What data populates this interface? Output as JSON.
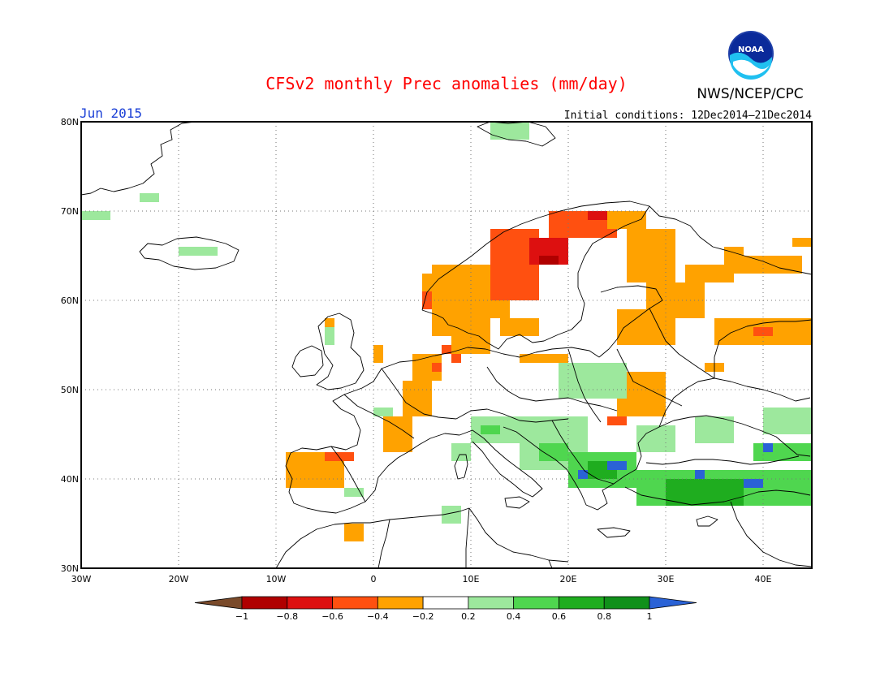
{
  "title": "CFSv2 monthly Prec anomalies (mm/day)",
  "month_label": "Jun 2015",
  "initial_conditions": "Initial conditions: 12Dec2014–21Dec2014",
  "organization": "NWS/NCEP/CPC",
  "logo_text": "NOAA",
  "map": {
    "lon_range": [
      -30,
      45
    ],
    "lat_range": [
      30,
      80
    ],
    "lon_ticks": [
      {
        "lon": -30,
        "label": "30W"
      },
      {
        "lon": -20,
        "label": "20W"
      },
      {
        "lon": -10,
        "label": "10W"
      },
      {
        "lon": 0,
        "label": "0"
      },
      {
        "lon": 10,
        "label": "10E"
      },
      {
        "lon": 20,
        "label": "20E"
      },
      {
        "lon": 30,
        "label": "30E"
      },
      {
        "lon": 40,
        "label": "40E"
      }
    ],
    "lat_ticks": [
      {
        "lat": 80,
        "label": "80N"
      },
      {
        "lat": 70,
        "label": "70N"
      },
      {
        "lat": 60,
        "label": "60N"
      },
      {
        "lat": 50,
        "label": "50N"
      },
      {
        "lat": 40,
        "label": "40N"
      },
      {
        "lat": 30,
        "label": "30N"
      }
    ],
    "grid": "dotted",
    "cell_deg": 1
  },
  "colorbar": {
    "ticks": [
      "−1",
      "−0.8",
      "−0.6",
      "−0.4",
      "−0.2",
      "0.2",
      "0.4",
      "0.6",
      "0.8",
      "1"
    ],
    "under_color": "#7a4a2a",
    "over_color": "#2a62d6",
    "colors": [
      "#b00000",
      "#dd1010",
      "#ff5010",
      "#ffa200",
      "#ffffff",
      "#9de89d",
      "#4fd64f",
      "#1fad1f",
      "#10901a"
    ]
  },
  "anomaly_regions": [
    {
      "lon": [
        -30,
        -27
      ],
      "lat": [
        69,
        70
      ],
      "value": 0.3
    },
    {
      "lon": [
        -24,
        -22
      ],
      "lat": [
        71,
        72
      ],
      "value": 0.3
    },
    {
      "lon": [
        -20,
        -16
      ],
      "lat": [
        65,
        66
      ],
      "value": 0.3
    },
    {
      "lon": [
        12,
        16
      ],
      "lat": [
        78,
        80
      ],
      "value": 0.3
    },
    {
      "lon": [
        -5,
        -4
      ],
      "lat": [
        57,
        58
      ],
      "value": -0.3
    },
    {
      "lon": [
        -5,
        -4
      ],
      "lat": [
        55,
        57
      ],
      "value": 0.3
    },
    {
      "lon": [
        0,
        1
      ],
      "lat": [
        53,
        55
      ],
      "value": -0.3
    },
    {
      "lon": [
        5,
        8
      ],
      "lat": [
        61,
        63
      ],
      "value": -0.3
    },
    {
      "lon": [
        5,
        6
      ],
      "lat": [
        59,
        61
      ],
      "value": -0.5
    },
    {
      "lon": [
        6,
        12
      ],
      "lat": [
        56,
        64
      ],
      "value": -0.3
    },
    {
      "lon": [
        10,
        14
      ],
      "lat": [
        58,
        60
      ],
      "value": -0.3
    },
    {
      "lon": [
        12,
        17
      ],
      "lat": [
        60,
        68
      ],
      "value": -0.5
    },
    {
      "lon": [
        16,
        20
      ],
      "lat": [
        64,
        67
      ],
      "value": -0.7
    },
    {
      "lon": [
        17,
        19
      ],
      "lat": [
        64,
        65
      ],
      "value": -0.9
    },
    {
      "lon": [
        18,
        25
      ],
      "lat": [
        67,
        70
      ],
      "value": -0.5
    },
    {
      "lon": [
        22,
        25
      ],
      "lat": [
        69,
        70
      ],
      "value": -0.7
    },
    {
      "lon": [
        24,
        28
      ],
      "lat": [
        68,
        70
      ],
      "value": -0.3
    },
    {
      "lon": [
        26,
        31
      ],
      "lat": [
        62,
        68
      ],
      "value": -0.3
    },
    {
      "lon": [
        28,
        34
      ],
      "lat": [
        58,
        62
      ],
      "value": -0.3
    },
    {
      "lon": [
        32,
        37
      ],
      "lat": [
        62,
        64
      ],
      "value": -0.3
    },
    {
      "lon": [
        36,
        38
      ],
      "lat": [
        64,
        66
      ],
      "value": -0.3
    },
    {
      "lon": [
        37,
        44
      ],
      "lat": [
        63,
        65
      ],
      "value": -0.3
    },
    {
      "lon": [
        43,
        45
      ],
      "lat": [
        66,
        67
      ],
      "value": -0.3
    },
    {
      "lon": [
        25,
        31
      ],
      "lat": [
        55,
        59
      ],
      "value": -0.3
    },
    {
      "lon": [
        13,
        17
      ],
      "lat": [
        56,
        58
      ],
      "value": -0.3
    },
    {
      "lon": [
        15,
        20
      ],
      "lat": [
        53,
        54
      ],
      "value": -0.3
    },
    {
      "lon": [
        8,
        12
      ],
      "lat": [
        54,
        56
      ],
      "value": -0.3
    },
    {
      "lon": [
        7,
        8
      ],
      "lat": [
        54,
        55
      ],
      "value": -0.5
    },
    {
      "lon": [
        4,
        7
      ],
      "lat": [
        51,
        54
      ],
      "value": -0.3
    },
    {
      "lon": [
        3,
        6
      ],
      "lat": [
        47,
        51
      ],
      "value": -0.3
    },
    {
      "lon": [
        1,
        4
      ],
      "lat": [
        43,
        47
      ],
      "value": -0.3
    },
    {
      "lon": [
        8,
        9
      ],
      "lat": [
        53,
        54
      ],
      "value": -0.5
    },
    {
      "lon": [
        6,
        7
      ],
      "lat": [
        52,
        53
      ],
      "value": -0.5
    },
    {
      "lon": [
        25,
        30
      ],
      "lat": [
        47,
        52
      ],
      "value": -0.3
    },
    {
      "lon": [
        24,
        26
      ],
      "lat": [
        46,
        47
      ],
      "value": -0.5
    },
    {
      "lon": [
        35,
        45
      ],
      "lat": [
        55,
        58
      ],
      "value": -0.3
    },
    {
      "lon": [
        39,
        41
      ],
      "lat": [
        56,
        57
      ],
      "value": -0.5
    },
    {
      "lon": [
        34,
        36
      ],
      "lat": [
        52,
        53
      ],
      "value": -0.3
    },
    {
      "lon": [
        -9,
        -3
      ],
      "lat": [
        39,
        43
      ],
      "value": -0.3
    },
    {
      "lon": [
        -5,
        -2
      ],
      "lat": [
        42,
        43
      ],
      "value": -0.5
    },
    {
      "lon": [
        -3,
        -1
      ],
      "lat": [
        33,
        35
      ],
      "value": -0.3
    },
    {
      "lon": [
        19,
        26
      ],
      "lat": [
        49,
        53
      ],
      "value": 0.3
    },
    {
      "lon": [
        10,
        15
      ],
      "lat": [
        44,
        47
      ],
      "value": 0.4
    },
    {
      "lon": [
        11,
        13
      ],
      "lat": [
        45,
        46
      ],
      "value": 0.6
    },
    {
      "lon": [
        15,
        22
      ],
      "lat": [
        41,
        47
      ],
      "value": 0.4
    },
    {
      "lon": [
        17,
        20
      ],
      "lat": [
        42,
        44
      ],
      "value": 0.6
    },
    {
      "lon": [
        20,
        27
      ],
      "lat": [
        39,
        43
      ],
      "value": 0.5
    },
    {
      "lon": [
        22,
        25
      ],
      "lat": [
        40,
        42
      ],
      "value": 0.7
    },
    {
      "lon": [
        24,
        26
      ],
      "lat": [
        41,
        42
      ],
      "value": 1.05
    },
    {
      "lon": [
        21,
        22
      ],
      "lat": [
        40,
        41
      ],
      "value": 1.05
    },
    {
      "lon": [
        27,
        31
      ],
      "lat": [
        43,
        46
      ],
      "value": 0.3
    },
    {
      "lon": [
        33,
        37
      ],
      "lat": [
        44,
        47
      ],
      "value": 0.3
    },
    {
      "lon": [
        40,
        45
      ],
      "lat": [
        45,
        48
      ],
      "value": 0.3
    },
    {
      "lon": [
        27,
        45
      ],
      "lat": [
        37,
        41
      ],
      "value": 0.5
    },
    {
      "lon": [
        30,
        38
      ],
      "lat": [
        37,
        40
      ],
      "value": 0.7
    },
    {
      "lon": [
        33,
        34
      ],
      "lat": [
        40,
        41
      ],
      "value": 1.05
    },
    {
      "lon": [
        38,
        40
      ],
      "lat": [
        39,
        40
      ],
      "value": 1.05
    },
    {
      "lon": [
        39,
        45
      ],
      "lat": [
        42,
        44
      ],
      "value": 0.6
    },
    {
      "lon": [
        40,
        41
      ],
      "lat": [
        43,
        44
      ],
      "value": 1.05
    },
    {
      "lon": [
        7,
        9
      ],
      "lat": [
        35,
        37
      ],
      "value": 0.3
    },
    {
      "lon": [
        -3,
        -1
      ],
      "lat": [
        38,
        39
      ],
      "value": 0.3
    },
    {
      "lon": [
        0,
        2
      ],
      "lat": [
        47,
        48
      ],
      "value": 0.3
    },
    {
      "lon": [
        8,
        10
      ],
      "lat": [
        42,
        44
      ],
      "value": 0.3
    }
  ]
}
